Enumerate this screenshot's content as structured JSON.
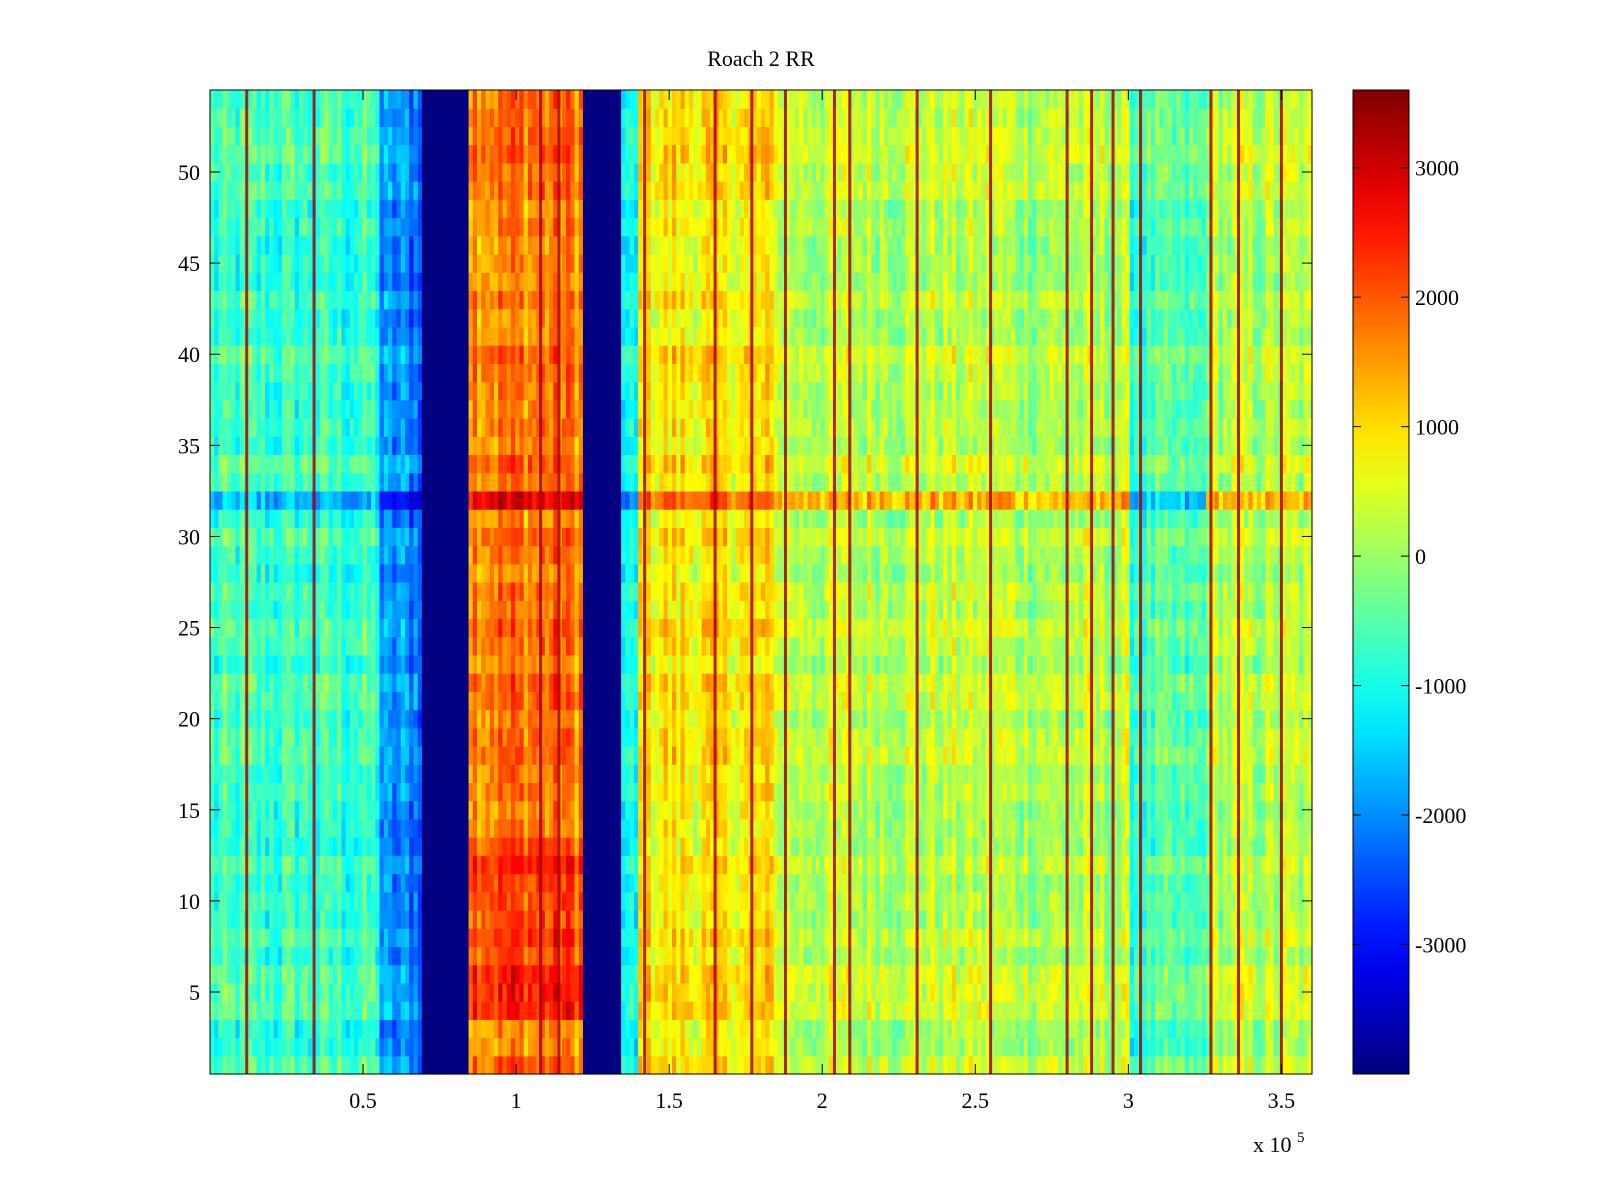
{
  "chart_data": {
    "type": "heatmap",
    "title": "Roach 2 RR",
    "xlabel": "",
    "ylabel": "",
    "x_multiplier_label": {
      "base": "x 10",
      "exponent": "5"
    },
    "xlim": [
      0,
      3.6
    ],
    "ylim": [
      0.5,
      54.5
    ],
    "x_ticks": [
      0.5,
      1,
      1.5,
      2,
      2.5,
      3,
      3.5
    ],
    "x_tick_labels": [
      "0.5",
      "1",
      "1.5",
      "2",
      "2.5",
      "3",
      "3.5"
    ],
    "y_ticks": [
      5,
      10,
      15,
      20,
      25,
      30,
      35,
      40,
      45,
      50
    ],
    "y_tick_labels": [
      "5",
      "10",
      "15",
      "20",
      "25",
      "30",
      "35",
      "40",
      "45",
      "50"
    ],
    "colorbar": {
      "colormap": "jet",
      "clim": [
        -4000,
        3600
      ],
      "ticks": [
        3000,
        2000,
        1000,
        0,
        -1000,
        -2000,
        -3000
      ],
      "tick_labels": [
        "3000",
        "2000",
        "1000",
        "0",
        "-1000",
        "-2000",
        "-3000"
      ]
    },
    "grid": false,
    "rows": 54,
    "column_bands": [
      {
        "x_start": 0.0,
        "x_end": 0.56,
        "mean": -700
      },
      {
        "x_start": 0.56,
        "x_end": 0.69,
        "mean": -2000
      },
      {
        "x_start": 0.69,
        "x_end": 0.84,
        "mean": -4000
      },
      {
        "x_start": 0.84,
        "x_end": 1.22,
        "mean": 1800
      },
      {
        "x_start": 1.22,
        "x_end": 1.34,
        "mean": -4000
      },
      {
        "x_start": 1.34,
        "x_end": 1.4,
        "mean": -1200
      },
      {
        "x_start": 1.4,
        "x_end": 1.85,
        "mean": 900
      },
      {
        "x_start": 1.85,
        "x_end": 2.6,
        "mean": 300
      },
      {
        "x_start": 2.6,
        "x_end": 3.0,
        "mean": 200
      },
      {
        "x_start": 3.0,
        "x_end": 3.25,
        "mean": -600
      },
      {
        "x_start": 3.25,
        "x_end": 3.6,
        "mean": 200
      }
    ],
    "vertical_streaks": [
      0.12,
      0.34,
      1.08,
      1.14,
      1.42,
      1.65,
      1.77,
      1.88,
      2.04,
      2.09,
      2.31,
      2.55,
      2.8,
      2.88,
      2.95,
      3.04,
      3.27,
      3.36,
      3.5
    ],
    "highlight_row": {
      "y": 32,
      "note": ""
    }
  }
}
